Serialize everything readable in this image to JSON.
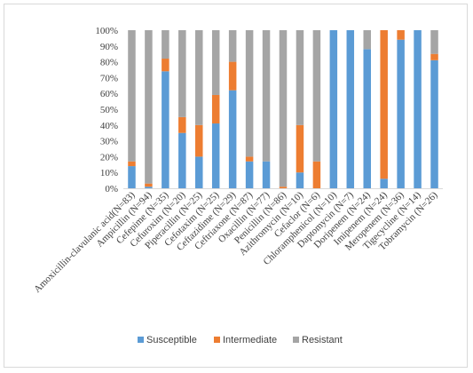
{
  "chart_data": {
    "type": "bar",
    "stacked": true,
    "percent_stacked": true,
    "categories": [
      "Amoxicillin-clavulanic acid(N=83)",
      "Ampicillin (N=94)",
      "Cefepime (N=35)",
      "Cefuroxim (N=20)",
      "Piperacillin (N=25)",
      "Cefotaxim (N=25)",
      "Ceftazidime (N=29)",
      "Ceftriaxone (N=87)",
      "Oxacillin (N=77)",
      "Penicillin (N=86)",
      "Azithromycin (N=10)",
      "Cefaclor (N=6)",
      "Chloramphenicol (N=10)",
      "Daptomycin (N=7)",
      "Doripenem (N=24)",
      "Imipenem (N=24)",
      "Meropenem (N=36)",
      "Tigecycline (N=14)",
      "Tobramycin (N=26)"
    ],
    "series": [
      {
        "name": "Susceptible",
        "color": "#5B9BD5",
        "values": [
          14,
          1,
          74,
          35,
          20,
          41,
          62,
          17,
          17,
          0,
          10,
          0,
          100,
          100,
          88,
          6,
          94,
          100,
          81
        ]
      },
      {
        "name": "Intermediate",
        "color": "#ED7D31",
        "values": [
          3,
          2,
          8,
          10,
          20,
          18,
          18,
          3,
          0,
          1,
          30,
          17,
          0,
          0,
          0,
          94,
          6,
          0,
          4
        ]
      },
      {
        "name": "Resistant",
        "color": "#A5A5A5",
        "values": [
          83,
          97,
          18,
          55,
          60,
          41,
          20,
          80,
          83,
          99,
          60,
          83,
          0,
          0,
          12,
          0,
          0,
          0,
          15
        ]
      }
    ],
    "yticks": [
      "0%",
      "10%",
      "20%",
      "30%",
      "40%",
      "50%",
      "60%",
      "70%",
      "80%",
      "90%",
      "100%"
    ],
    "ylim": [
      0,
      100
    ],
    "grid": false,
    "legend_position": "bottom"
  }
}
